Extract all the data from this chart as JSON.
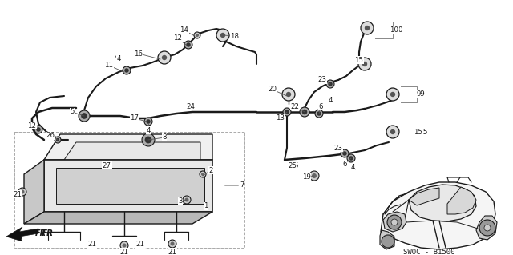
{
  "bg_color": "#ffffff",
  "lc": "#1a1a1a",
  "gc": "#888888",
  "diagram_code": "SWOC - B1500",
  "fw": 6.4,
  "fh": 3.19,
  "dpi": 100
}
